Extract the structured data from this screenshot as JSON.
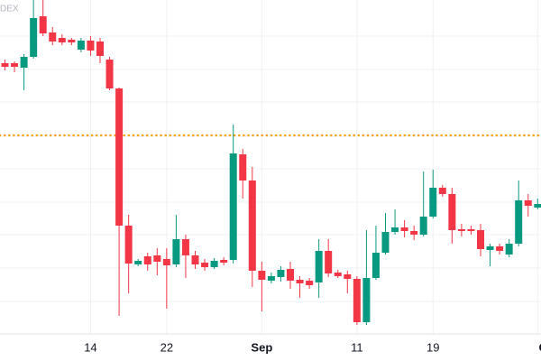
{
  "chart_data": {
    "type": "candlestick",
    "watermark": "DEX",
    "categories": [
      null,
      null,
      null,
      null,
      null,
      null,
      null,
      null,
      null,
      "14",
      null,
      null,
      null,
      null,
      null,
      null,
      null,
      "22",
      null,
      null,
      null,
      null,
      null,
      null,
      null,
      null,
      null,
      "Sep",
      null,
      null,
      null,
      null,
      null,
      null,
      null,
      null,
      null,
      "11",
      null,
      null,
      null,
      null,
      null,
      null,
      null,
      "19",
      null,
      null,
      null,
      null,
      null,
      null,
      null,
      null,
      null,
      null,
      "Oct"
    ],
    "open": [
      330,
      330,
      325,
      337,
      382,
      364,
      358,
      356,
      345,
      355,
      354,
      334,
      302,
      150,
      107,
      116,
      117,
      113,
      107,
      135,
      117,
      109,
      104,
      112,
      112,
      229,
      200,
      100,
      89,
      93,
      102,
      90,
      89,
      87,
      122,
      98,
      96,
      91,
      43,
      92,
      120,
      143,
      148,
      144,
      140,
      160,
      192,
      185,
      146,
      146,
      145,
      123,
      127,
      118,
      130,
      178,
      170
    ],
    "high": [
      334,
      332,
      340,
      400,
      400,
      370,
      362,
      358,
      358,
      360,
      358,
      337,
      303,
      162,
      113,
      120,
      125,
      125,
      162,
      140,
      122,
      113,
      114,
      115,
      262,
      235,
      215,
      110,
      98,
      105,
      110,
      94,
      92,
      135,
      135,
      101,
      100,
      94,
      145,
      150,
      164,
      168,
      156,
      150,
      210,
      212,
      195,
      192,
      152,
      150,
      152,
      130,
      130,
      135,
      200,
      185,
      180
    ],
    "low": [
      322,
      320,
      300,
      335,
      360,
      350,
      350,
      350,
      342,
      338,
      330,
      300,
      50,
      75,
      105,
      100,
      95,
      58,
      104,
      92,
      102,
      100,
      102,
      106,
      108,
      180,
      82,
      55,
      86,
      88,
      80,
      70,
      80,
      70,
      93,
      92,
      75,
      40,
      40,
      90,
      118,
      140,
      137,
      134,
      138,
      158,
      182,
      130,
      138,
      140,
      116,
      105,
      118,
      115,
      127,
      160,
      168
    ],
    "close": [
      326,
      326,
      337,
      380,
      363,
      354,
      353,
      353,
      355,
      344,
      338,
      302,
      150,
      108,
      111,
      107,
      110,
      106,
      135,
      117,
      107,
      104,
      111,
      109,
      230,
      200,
      100,
      90,
      94,
      101,
      89,
      86,
      84,
      122,
      97,
      94,
      91,
      43,
      92,
      120,
      143,
      148,
      144,
      140,
      160,
      192,
      185,
      145,
      144,
      144,
      124,
      127,
      122,
      130,
      178,
      172,
      174
    ],
    "up_color": "#089981",
    "down_color": "#f23645",
    "ylim": [
      30,
      400
    ],
    "ygrid": [
      360,
      323,
      287,
      250,
      213,
      176,
      140,
      103,
      66
    ],
    "reference_line": 250,
    "reference_color": "#f7a21b"
  }
}
